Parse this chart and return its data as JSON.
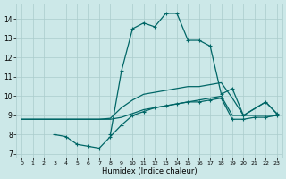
{
  "xlabel": "Humidex (Indice chaleur)",
  "bg_color": "#cce8e8",
  "grid_color": "#aacccc",
  "line_color": "#006666",
  "xlim": [
    -0.5,
    23.5
  ],
  "ylim": [
    6.8,
    14.8
  ],
  "xticks": [
    0,
    1,
    2,
    3,
    4,
    5,
    6,
    7,
    8,
    9,
    10,
    11,
    12,
    13,
    14,
    15,
    16,
    17,
    18,
    19,
    20,
    21,
    22,
    23
  ],
  "yticks": [
    7,
    8,
    9,
    10,
    11,
    12,
    13,
    14
  ],
  "series_main_x": [
    8,
    9,
    10,
    11,
    12,
    13,
    14,
    15,
    16,
    17,
    18,
    19,
    20,
    22,
    23
  ],
  "series_main_y": [
    8.0,
    11.3,
    13.5,
    13.8,
    13.6,
    14.3,
    14.3,
    12.9,
    12.9,
    12.6,
    10.1,
    10.4,
    9.0,
    9.7,
    9.1
  ],
  "series_low_x": [
    3,
    4,
    5,
    6,
    7,
    8,
    9,
    10,
    11,
    12,
    13,
    14,
    15,
    16,
    17,
    18,
    19,
    20,
    21,
    22,
    23
  ],
  "series_low_y": [
    8.0,
    7.9,
    7.5,
    7.4,
    7.3,
    7.9,
    8.5,
    9.0,
    9.2,
    9.4,
    9.5,
    9.6,
    9.7,
    9.7,
    9.8,
    9.9,
    8.8,
    8.8,
    8.9,
    8.9,
    9.0
  ],
  "series_reg1_x": [
    0,
    1,
    2,
    3,
    4,
    5,
    6,
    7,
    8,
    9,
    10,
    11,
    12,
    13,
    14,
    15,
    16,
    17,
    18,
    19,
    20,
    21,
    22,
    23
  ],
  "series_reg1_y": [
    8.8,
    8.8,
    8.8,
    8.8,
    8.8,
    8.8,
    8.8,
    8.8,
    8.8,
    8.9,
    9.1,
    9.3,
    9.4,
    9.5,
    9.6,
    9.7,
    9.8,
    9.9,
    10.0,
    9.0,
    9.0,
    9.0,
    9.0,
    9.0
  ],
  "series_reg2_x": [
    0,
    1,
    2,
    3,
    4,
    5,
    6,
    7,
    8,
    9,
    10,
    11,
    12,
    13,
    14,
    15,
    16,
    17,
    18,
    19,
    20,
    22,
    23
  ],
  "series_reg2_y": [
    8.8,
    8.8,
    8.8,
    8.8,
    8.8,
    8.8,
    8.8,
    8.8,
    8.85,
    9.4,
    9.8,
    10.1,
    10.2,
    10.3,
    10.4,
    10.5,
    10.5,
    10.6,
    10.7,
    9.9,
    9.0,
    9.7,
    9.1
  ]
}
